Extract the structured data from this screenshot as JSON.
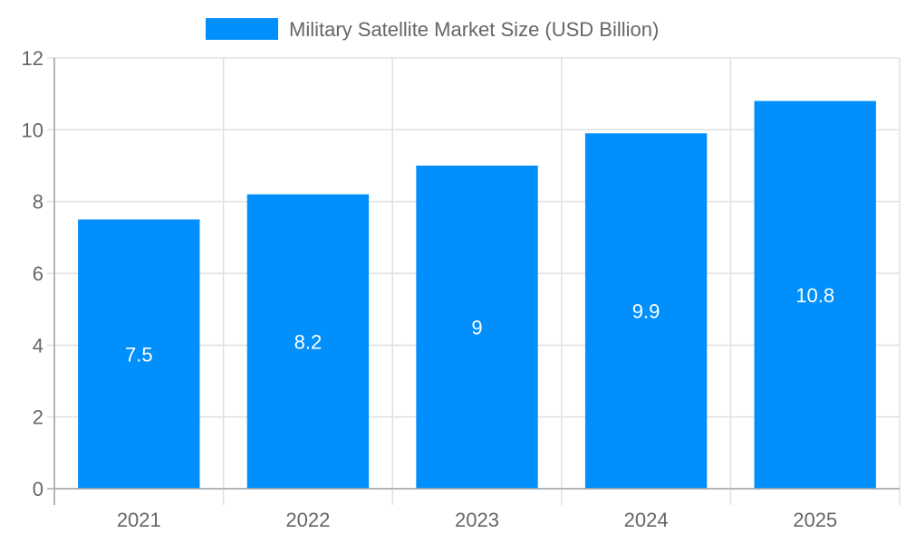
{
  "chart_data": {
    "type": "bar",
    "categories": [
      "2021",
      "2022",
      "2023",
      "2024",
      "2025"
    ],
    "series": [
      {
        "name": "Military Satellite Market Size (USD Billion)",
        "values": [
          7.5,
          8.2,
          9,
          9.9,
          10.8
        ],
        "color": "#008ffb"
      }
    ],
    "data_labels": [
      "7.5",
      "8.2",
      "9",
      "9.9",
      "10.8"
    ],
    "yticks": [
      "0",
      "2",
      "4",
      "6",
      "8",
      "10",
      "12"
    ],
    "ylim": [
      0,
      12
    ],
    "xlabel": "",
    "ylabel": "",
    "grid": true,
    "legend_position": "top",
    "colors": {
      "grid": "#e0e0e0",
      "axis": "#aaaaaa",
      "text": "#666666"
    }
  }
}
